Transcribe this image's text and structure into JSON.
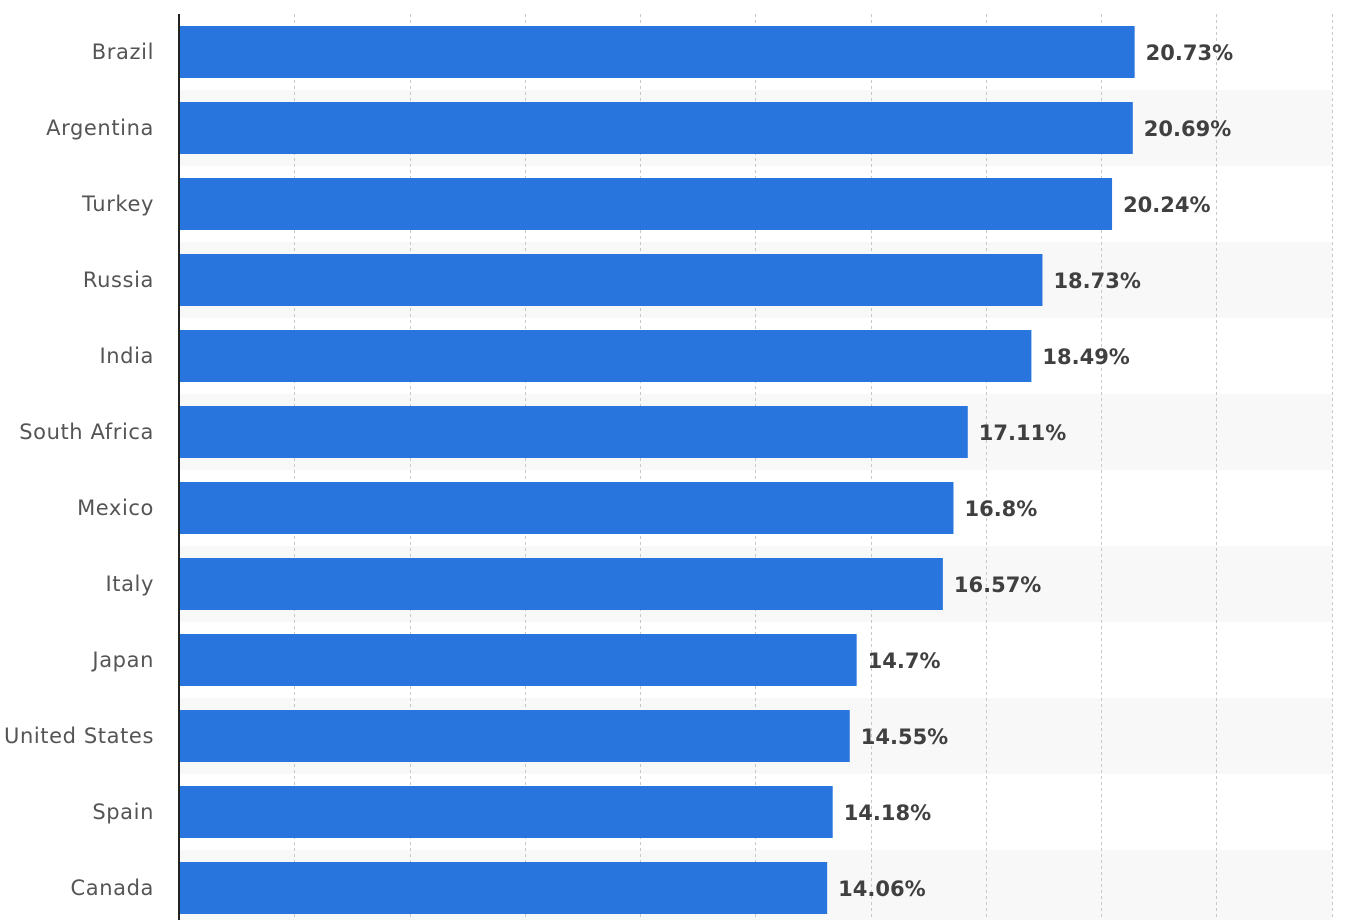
{
  "colors": {
    "bar": "#2875dd",
    "band": "#f8f8f8",
    "grid": "#c8c8c8",
    "axis": "#222222",
    "category_text": "#555555",
    "value_text": "#404040"
  },
  "chart_data": {
    "type": "bar",
    "orientation": "horizontal",
    "title": "",
    "xlabel": "",
    "ylabel": "",
    "value_suffix": "%",
    "xlim": [
      0,
      25
    ],
    "x_grid_step": 2.5,
    "grid": true,
    "categories": [
      "Brazil",
      "Argentina",
      "Turkey",
      "Russia",
      "India",
      "South Africa",
      "Mexico",
      "Italy",
      "Japan",
      "United States",
      "Spain",
      "Canada"
    ],
    "values": [
      20.73,
      20.69,
      20.24,
      18.73,
      18.49,
      17.11,
      16.8,
      16.57,
      14.7,
      14.55,
      14.18,
      14.06
    ],
    "value_labels": [
      "20.73%",
      "20.69%",
      "20.24%",
      "18.73%",
      "18.49%",
      "17.11%",
      "16.8%",
      "16.57%",
      "14.7%",
      "14.55%",
      "14.18%",
      "14.06%"
    ]
  }
}
